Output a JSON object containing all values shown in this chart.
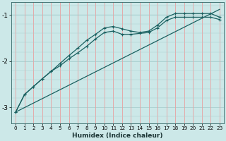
{
  "title": "",
  "xlabel": "Humidex (Indice chaleur)",
  "bg_color": "#cce8e8",
  "vgrid_color": "#e8a0a0",
  "hgrid_color": "#aacfcf",
  "line_color": "#1a6060",
  "xlim": [
    -0.5,
    23.5
  ],
  "ylim": [
    -3.35,
    -0.72
  ],
  "yticks": [
    -3,
    -2,
    -1
  ],
  "xticks": [
    0,
    1,
    2,
    3,
    4,
    5,
    6,
    7,
    8,
    9,
    10,
    11,
    12,
    13,
    14,
    15,
    16,
    17,
    18,
    19,
    20,
    21,
    22,
    23
  ],
  "line1_x": [
    0,
    23
  ],
  "line1_y": [
    -3.1,
    -0.88
  ],
  "line2_x": [
    0,
    1,
    2,
    3,
    4,
    5,
    6,
    7,
    8,
    9,
    10,
    11,
    12,
    13,
    14,
    15,
    16,
    17,
    18,
    19,
    20,
    21,
    22,
    23
  ],
  "line2_y": [
    -3.1,
    -2.72,
    -2.55,
    -2.38,
    -2.22,
    -2.1,
    -1.95,
    -1.82,
    -1.68,
    -1.52,
    -1.38,
    -1.35,
    -1.42,
    -1.42,
    -1.4,
    -1.38,
    -1.28,
    -1.12,
    -1.05,
    -1.05,
    -1.05,
    -1.05,
    -1.05,
    -1.1
  ],
  "line3_x": [
    0,
    1,
    2,
    3,
    4,
    5,
    6,
    7,
    8,
    9,
    10,
    11,
    12,
    13,
    14,
    15,
    16,
    17,
    18,
    19,
    20,
    21,
    22,
    23
  ],
  "line3_y": [
    -3.1,
    -2.72,
    -2.55,
    -2.38,
    -2.22,
    -2.05,
    -1.88,
    -1.72,
    -1.55,
    -1.42,
    -1.28,
    -1.25,
    -1.3,
    -1.35,
    -1.38,
    -1.35,
    -1.22,
    -1.05,
    -0.97,
    -0.97,
    -0.97,
    -0.97,
    -0.97,
    -1.05
  ]
}
